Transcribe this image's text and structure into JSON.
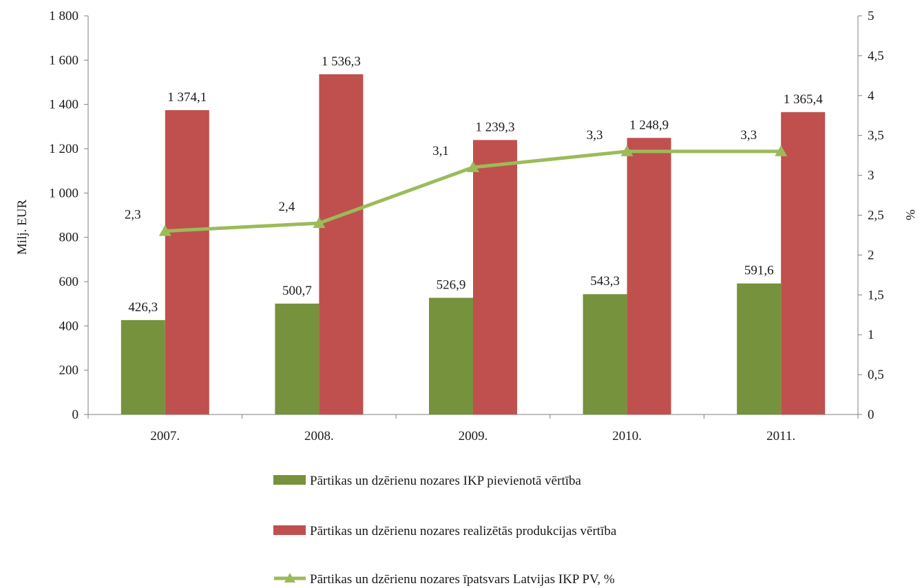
{
  "chart_data": {
    "type": "bar",
    "categories": [
      "2007.",
      "2008.",
      "2009.",
      "2010.",
      "2011."
    ],
    "series": [
      {
        "name": "Pārtikas un dzērienu nozares IKP pievienotā vērtība",
        "type": "bar",
        "axis": "left",
        "color": "#76923C",
        "values": [
          426.3,
          500.7,
          526.9,
          543.3,
          591.6
        ],
        "labels": [
          "426,3",
          "500,7",
          "526,9",
          "543,3",
          "591,6"
        ]
      },
      {
        "name": "Pārtikas un dzērienu nozares realizētās produkcijas vērtība",
        "type": "bar",
        "axis": "left",
        "color": "#C0504D",
        "values": [
          1374.1,
          1536.3,
          1239.3,
          1248.9,
          1365.4
        ],
        "labels": [
          "1 374,1",
          "1 536,3",
          "1 239,3",
          "1 248,9",
          "1 365,4"
        ]
      },
      {
        "name": "Pārtikas un dzērienu nozares īpatsvars Latvijas IKP PV, %",
        "type": "line",
        "axis": "right",
        "marker": "triangle",
        "color": "#9BBB59",
        "values": [
          2.3,
          2.4,
          3.1,
          3.3,
          3.3
        ],
        "labels": [
          "2,3",
          "2,4",
          "3,1",
          "3,3",
          "3,3"
        ]
      }
    ],
    "ylabel": "Milj.  EUR",
    "y2label": "%",
    "ylim": [
      0,
      1800
    ],
    "y2lim": [
      0,
      5
    ],
    "yticks": [
      "0",
      "200",
      "400",
      "600",
      "800",
      "1 000",
      "1 200",
      "1 400",
      "1 600",
      "1 800"
    ],
    "y2ticks": [
      "0",
      "0,5",
      "1",
      "1,5",
      "2",
      "2,5",
      "3",
      "3,5",
      "4",
      "4,5",
      "5"
    ],
    "grid": false,
    "legend_position": "bottom"
  }
}
